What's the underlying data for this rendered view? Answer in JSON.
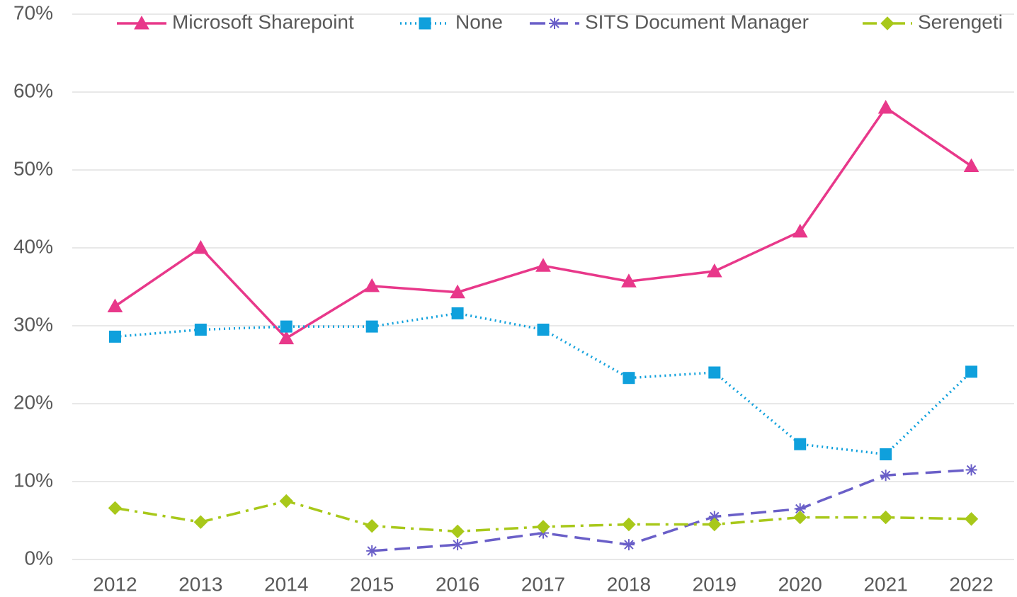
{
  "chart_data": {
    "type": "line",
    "categories": [
      "2012",
      "2013",
      "2014",
      "2015",
      "2016",
      "2017",
      "2018",
      "2019",
      "2020",
      "2021",
      "2022"
    ],
    "series": [
      {
        "name": "Microsoft Sharepoint",
        "color": "#e8388a",
        "marker": "triangle",
        "line_style": "solid",
        "values": [
          32.5,
          40,
          28.4,
          35.1,
          34.3,
          37.7,
          35.7,
          37,
          42.1,
          58,
          50.5
        ]
      },
      {
        "name": "None",
        "color": "#0fa0dc",
        "marker": "square",
        "line_style": "dotted",
        "values": [
          28.6,
          29.5,
          29.9,
          29.9,
          31.6,
          29.5,
          23.3,
          24,
          14.8,
          13.5,
          24.1
        ]
      },
      {
        "name": "SITS Document Manager",
        "color": "#6a5fc8",
        "marker": "asterisk",
        "line_style": "dashed",
        "values": [
          null,
          null,
          null,
          1.1,
          1.9,
          3.4,
          1.9,
          5.5,
          6.5,
          10.8,
          11.5
        ]
      },
      {
        "name": "Serengeti",
        "color": "#a8c81a",
        "marker": "diamond",
        "line_style": "dashdot",
        "values": [
          6.6,
          4.8,
          7.5,
          4.3,
          3.6,
          4.2,
          4.5,
          4.5,
          5.4,
          5.4,
          5.2
        ]
      }
    ],
    "ylim": [
      0,
      70
    ],
    "yticks": [
      {
        "value": 0,
        "label": "0%"
      },
      {
        "value": 10,
        "label": "10%"
      },
      {
        "value": 20,
        "label": "20%"
      },
      {
        "value": 30,
        "label": "30%"
      },
      {
        "value": 40,
        "label": "40%"
      },
      {
        "value": 50,
        "label": "50%"
      },
      {
        "value": 60,
        "label": "60%"
      },
      {
        "value": 70,
        "label": "70%"
      }
    ],
    "grid": true,
    "legend": "top"
  }
}
